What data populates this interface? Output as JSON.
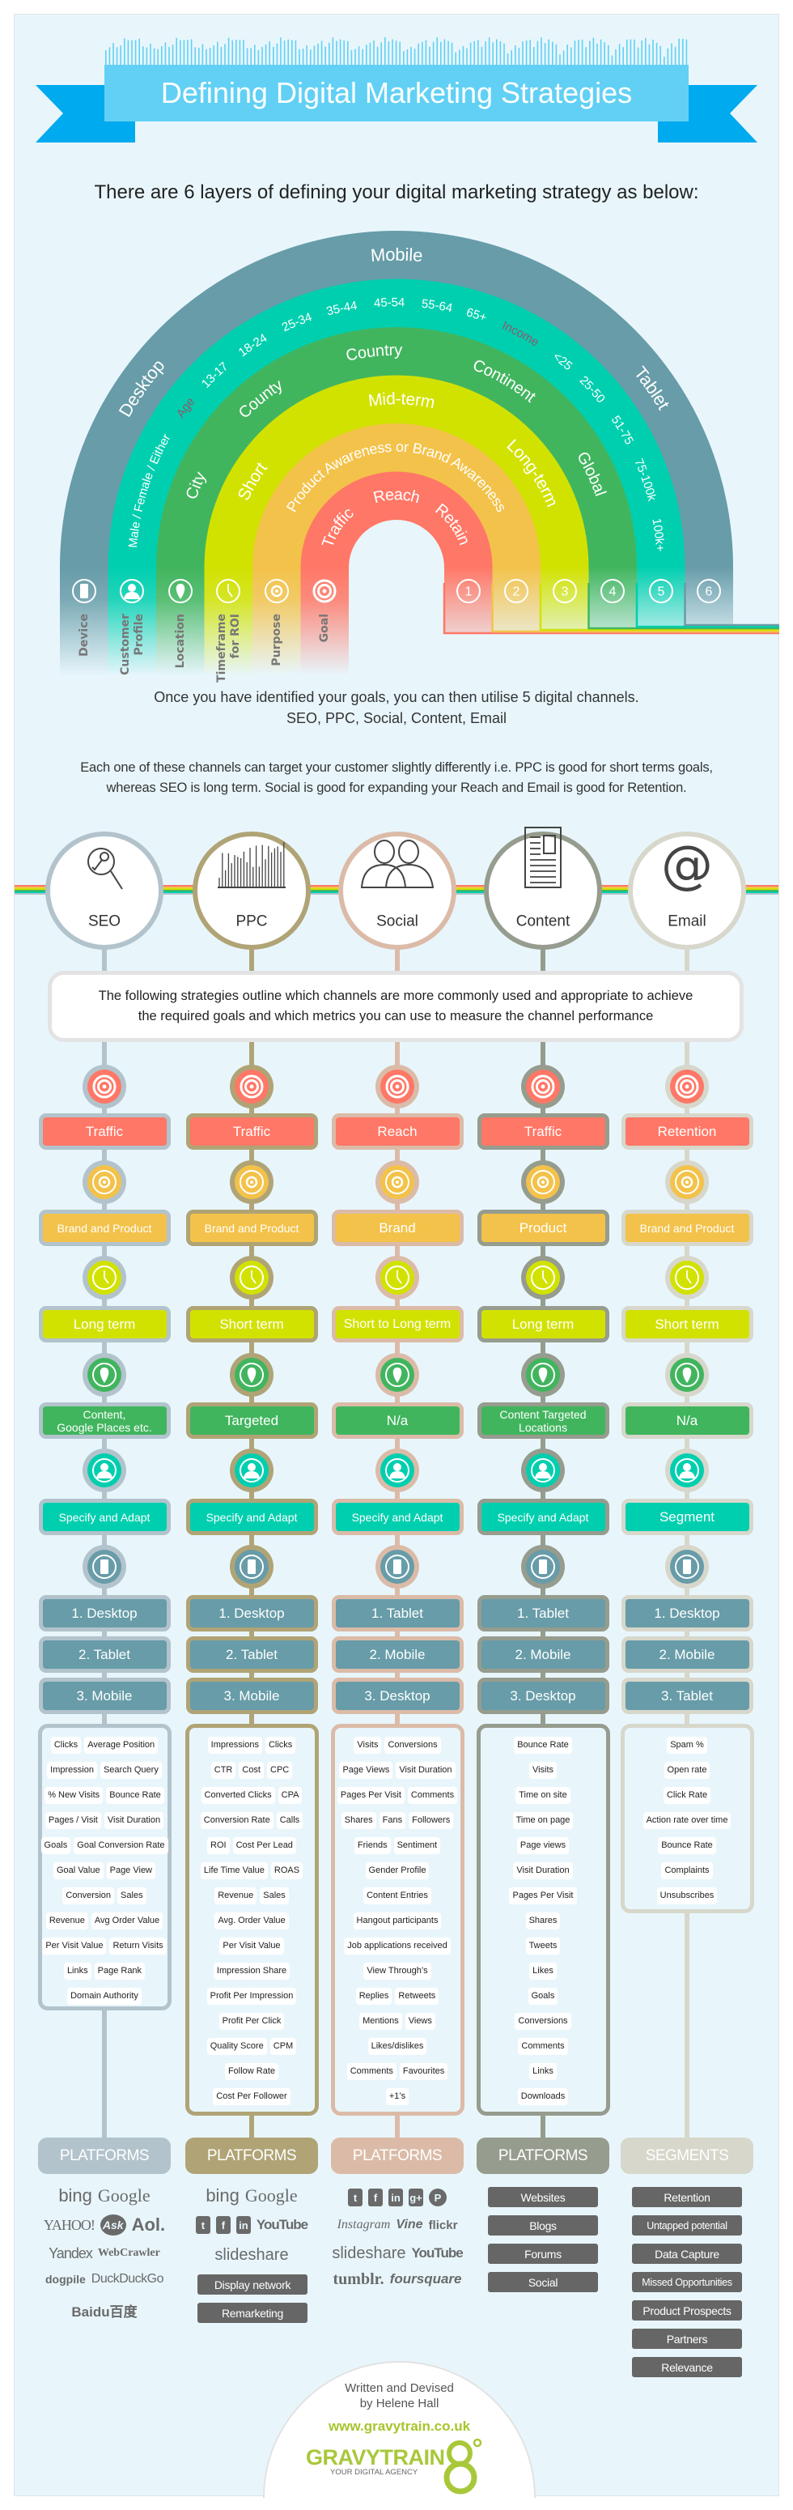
{
  "colors": {
    "background": "#e8f6fc",
    "banner": "#62d0f5",
    "banner_tail": "#00aaee",
    "stages": [
      "#ff7766",
      "#f3c24a",
      "#d2e200",
      "#41b55e",
      "#00cfaf",
      "#679ca8"
    ],
    "accent_label": "#8b5a6b",
    "button_dark": "#666666",
    "brand_green": "#a8c83a"
  },
  "header": {
    "title": "Defining Digital Marketing Strategies",
    "subtitle": "There are 6 layers of defining your digital marketing strategy as below:"
  },
  "rainbow": {
    "bands": [
      {
        "color": "#679ca8",
        "labels": [
          "Desktop",
          "Mobile",
          "Tablet"
        ]
      },
      {
        "color": "#00cfaf",
        "labels": [
          "Male / Female / Either",
          "Age",
          "13-17",
          "18-24",
          "25-34",
          "35-44",
          "45-54",
          "55-64",
          "65+",
          "Income",
          "<25",
          "25-50",
          "51-75",
          "75-100k",
          "100k+"
        ]
      },
      {
        "color": "#41b55e",
        "labels": [
          "City",
          "County",
          "Country",
          "Continent",
          "Global"
        ]
      },
      {
        "color": "#d2e200",
        "labels": [
          "Short",
          "Mid-term",
          "Long-term"
        ]
      },
      {
        "color": "#f3c24a",
        "labels": [
          "Product Awareness or Brand Awareness"
        ]
      },
      {
        "color": "#ff7766",
        "labels": [
          "Traffic",
          "Reach",
          "Retain"
        ]
      }
    ],
    "accent_labels": [
      "Age",
      "Income"
    ],
    "layers": [
      {
        "label": [
          "Device"
        ],
        "icon": "device-icon"
      },
      {
        "label": [
          "Customer",
          "Profile"
        ],
        "icon": "person-icon"
      },
      {
        "label": [
          "Location"
        ],
        "icon": "location-pin-icon"
      },
      {
        "label": [
          "Timeframe",
          "for ROI"
        ],
        "icon": "clock-icon"
      },
      {
        "label": [
          "Purpose"
        ],
        "icon": "purpose-icon"
      },
      {
        "label": [
          "Goal"
        ],
        "icon": "target-icon"
      }
    ],
    "numbers": [
      "1",
      "2",
      "3",
      "4",
      "5",
      "6"
    ]
  },
  "intro": {
    "line1": "Once you have identified your goals, you can then utilise 5 digital channels.",
    "line2": "SEO, PPC, Social, Content, Email",
    "para": [
      "Each one of these channels can target your customer slightly differently i.e. PPC is good for short terms goals,",
      "whereas SEO is long term.  Social is good for expanding your Reach and Email is good for Retention."
    ]
  },
  "info_box": [
    "The following strategies outline which channels are more commonly used and appropriate to achieve",
    "the required goals and which metrics you can use to measure the channel performance"
  ],
  "channels": [
    {
      "name": "SEO",
      "color": "#b2c3cc",
      "icon": "search-key-icon",
      "goal": "Traffic",
      "purpose": "Brand and Product",
      "timeframe": "Long term",
      "location": "Content,\nGoogle Places etc.",
      "profile": "Specify and Adapt",
      "devices": [
        "1. Desktop",
        "2. Tablet",
        "3. Mobile"
      ],
      "metrics": [
        [
          "Clicks",
          "Average Position"
        ],
        [
          "Impression",
          "Search Query"
        ],
        [
          "% New Visits",
          "Bounce Rate"
        ],
        [
          "Pages / Visit",
          "Visit Duration"
        ],
        [
          "Goals",
          "Goal Conversion Rate"
        ],
        [
          "Goal Value",
          "Page View"
        ],
        [
          "Conversion",
          "Sales"
        ],
        [
          "Revenue",
          "Avg Order Value"
        ],
        [
          "Per Visit Value",
          "Return Visits"
        ],
        [
          "Links",
          "Page Rank"
        ],
        [
          "Domain Authority"
        ]
      ],
      "section_title": "PLATFORMS",
      "platform_rows": [
        [
          "bing",
          "Google"
        ],
        [
          "YAHOO!",
          "Ask",
          "Aol."
        ],
        [
          "Yandex",
          "WebCrawler"
        ],
        [
          "dogpile",
          "DuckDuckGo"
        ],
        [
          "Baidu百度"
        ]
      ],
      "buttons": []
    },
    {
      "name": "PPC",
      "color": "#b0a476",
      "icon": "bar-chart-icon",
      "goal": "Traffic",
      "purpose": "Brand and Product",
      "timeframe": "Short term",
      "location": "Targeted",
      "profile": "Specify and Adapt",
      "devices": [
        "1. Desktop",
        "2. Tablet",
        "3. Mobile"
      ],
      "metrics": [
        [
          "Impressions",
          "Clicks"
        ],
        [
          "CTR",
          "Cost",
          "CPC"
        ],
        [
          "Converted Clicks",
          "CPA"
        ],
        [
          "Conversion Rate",
          "Calls"
        ],
        [
          "ROI",
          "Cost Per Lead"
        ],
        [
          "Life Time Value",
          "ROAS"
        ],
        [
          "Revenue",
          "Sales"
        ],
        [
          "Avg. Order Value"
        ],
        [
          "Per Visit Value"
        ],
        [
          "Impression Share"
        ],
        [
          "Profit Per Impression"
        ],
        [
          "Profit Per Click"
        ],
        [
          "Quality Score",
          "CPM"
        ],
        [
          "Follow Rate"
        ],
        [
          "Cost Per Follower"
        ]
      ],
      "section_title": "PLATFORMS",
      "platform_rows": [
        [
          "bing",
          "Google"
        ],
        [
          "twitter",
          "facebook",
          "linkedin",
          "YouTube"
        ],
        [
          "slideshare"
        ]
      ],
      "buttons": [
        "Display network",
        "Remarketing"
      ]
    },
    {
      "name": "Social",
      "color": "#dbbba8",
      "icon": "people-icon",
      "goal": "Reach",
      "purpose": "Brand",
      "timeframe": "Short to Long term",
      "location": "N/a",
      "profile": "Specify and Adapt",
      "devices": [
        "1. Tablet",
        "2. Mobile",
        "3. Desktop"
      ],
      "metrics": [
        [
          "Visits",
          "Conversions"
        ],
        [
          "Page Views",
          "Visit Duration"
        ],
        [
          "Pages Per Visit",
          "Comments"
        ],
        [
          "Shares",
          "Fans",
          "Followers"
        ],
        [
          "Friends",
          "Sentiment"
        ],
        [
          "Gender Profile"
        ],
        [
          "Content Entries"
        ],
        [
          "Hangout participants"
        ],
        [
          "Job applications received"
        ],
        [
          "View Through’s"
        ],
        [
          "Replies",
          "Retweets"
        ],
        [
          "Mentions",
          "Views"
        ],
        [
          "Likes/dislikes"
        ],
        [
          "Comments",
          "Favourites"
        ],
        [
          "+1’s"
        ]
      ],
      "section_title": "PLATFORMS",
      "platform_rows": [
        [
          "twitter",
          "facebook",
          "linkedin",
          "google+",
          "pinterest"
        ],
        [
          "Instagram",
          "Vine",
          "flickr"
        ],
        [
          "slideshare",
          "YouTube"
        ],
        [
          "tumblr.",
          "foursquare"
        ]
      ],
      "buttons": []
    },
    {
      "name": "Content",
      "color": "#969c8e",
      "icon": "document-icon",
      "goal": "Traffic",
      "purpose": "Product",
      "timeframe": "Long term",
      "location": "Content Targeted\nLocations",
      "profile": "Specify and Adapt",
      "devices": [
        "1. Tablet",
        "2. Mobile",
        "3. Desktop"
      ],
      "metrics": [
        [
          "Bounce Rate"
        ],
        [
          "Visits"
        ],
        [
          "Time on site"
        ],
        [
          "Time on page"
        ],
        [
          "Page views"
        ],
        [
          "Visit Duration"
        ],
        [
          "Pages Per Visit"
        ],
        [
          "Shares"
        ],
        [
          "Tweets"
        ],
        [
          "Likes"
        ],
        [
          "Goals"
        ],
        [
          "Conversions"
        ],
        [
          "Comments"
        ],
        [
          "Links"
        ],
        [
          "Downloads"
        ]
      ],
      "section_title": "PLATFORMS",
      "platform_rows": [],
      "buttons": [
        "Websites",
        "Blogs",
        "Forums",
        "Social"
      ]
    },
    {
      "name": "Email",
      "color": "#d7d7cb",
      "icon": "at-sign-icon",
      "goal": "Retention",
      "purpose": "Brand and Product",
      "timeframe": "Short term",
      "location": "N/a",
      "profile": "Segment",
      "devices": [
        "1. Desktop",
        "2. Mobile",
        "3. Tablet"
      ],
      "metrics": [
        [
          "Spam %"
        ],
        [
          "Open rate"
        ],
        [
          "Click Rate"
        ],
        [
          "Action rate over time"
        ],
        [
          "Bounce Rate"
        ],
        [
          "Complaints"
        ],
        [
          "Unsubscribes"
        ]
      ],
      "section_title": "SEGMENTS",
      "platform_rows": [],
      "buttons": [
        "Retention",
        "Untapped potential",
        "Data Capture",
        "Missed Opportunities",
        "Product Prospects",
        "Partners",
        "Relevance"
      ]
    }
  ],
  "footer": {
    "credit_line1": "Written and Devised",
    "credit_line2": "by Helene Hall",
    "url": "www.gravytrain.co.uk",
    "logo_text": "GRAVYTRAIN",
    "logo_tagline": "YOUR DIGITAL AGENCY"
  }
}
